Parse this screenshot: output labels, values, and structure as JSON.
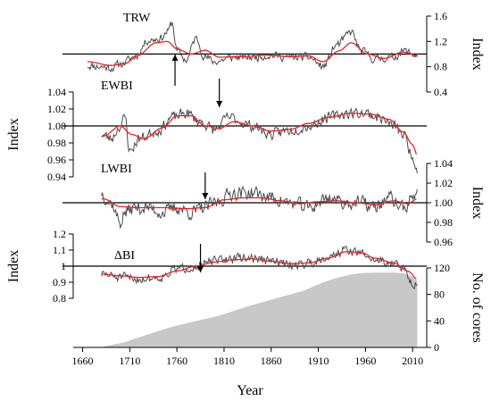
{
  "chart_data": {
    "type": "line",
    "x_axis": {
      "label": "Year",
      "range": [
        1650,
        2025
      ],
      "ticks": [
        1660,
        1710,
        1760,
        1810,
        1860,
        1910,
        1960,
        2010
      ],
      "tick_labels": [
        "1660",
        "1710",
        "1760",
        "1810",
        "1860",
        "1910",
        "1960",
        "2010"
      ]
    },
    "panels": [
      {
        "label": "TRW",
        "y_axis": {
          "side": "right",
          "label": "Index",
          "range": [
            0.4,
            1.6
          ],
          "ticks": [
            0.4,
            0.8,
            1.2,
            1.6
          ],
          "tick_labels": [
            "0.4",
            "0.8",
            "1.2",
            "1.6"
          ]
        },
        "reference_line": 1.0,
        "arrow_year": 1758,
        "x_start": 1665,
        "x_end": 2015,
        "raw_anchors": [
          [
            1665,
            0.82
          ],
          [
            1680,
            0.8
          ],
          [
            1690,
            0.78
          ],
          [
            1700,
            0.84
          ],
          [
            1715,
            0.95
          ],
          [
            1730,
            1.22
          ],
          [
            1743,
            1.25
          ],
          [
            1750,
            1.35
          ],
          [
            1755,
            1.5
          ],
          [
            1760,
            1.05
          ],
          [
            1770,
            0.9
          ],
          [
            1780,
            1.25
          ],
          [
            1790,
            0.95
          ],
          [
            1800,
            0.88
          ],
          [
            1820,
            0.95
          ],
          [
            1840,
            0.95
          ],
          [
            1860,
            0.98
          ],
          [
            1880,
            0.95
          ],
          [
            1900,
            0.95
          ],
          [
            1915,
            0.8
          ],
          [
            1930,
            1.15
          ],
          [
            1945,
            1.35
          ],
          [
            1955,
            1.05
          ],
          [
            1970,
            0.92
          ],
          [
            1990,
            0.95
          ],
          [
            2000,
            1.05
          ],
          [
            2015,
            0.98
          ]
        ],
        "smooth_anchors": [
          [
            1665,
            0.88
          ],
          [
            1690,
            0.82
          ],
          [
            1705,
            0.85
          ],
          [
            1720,
            1.0
          ],
          [
            1738,
            1.18
          ],
          [
            1750,
            1.2
          ],
          [
            1760,
            1.08
          ],
          [
            1775,
            1.0
          ],
          [
            1790,
            1.06
          ],
          [
            1805,
            0.95
          ],
          [
            1830,
            0.96
          ],
          [
            1855,
            0.98
          ],
          [
            1880,
            0.96
          ],
          [
            1900,
            0.97
          ],
          [
            1915,
            0.88
          ],
          [
            1932,
            1.05
          ],
          [
            1945,
            1.18
          ],
          [
            1962,
            1.0
          ],
          [
            1980,
            0.93
          ],
          [
            2000,
            1.03
          ],
          [
            2015,
            0.98
          ]
        ],
        "noise_amplitude": 0.09,
        "seed": 11
      },
      {
        "label": "EWBI",
        "y_axis": {
          "side": "left",
          "label": "Index",
          "range": [
            0.94,
            1.04
          ],
          "ticks": [
            0.94,
            0.96,
            0.98,
            1.0,
            1.02,
            1.04
          ],
          "tick_labels": [
            "0.94",
            "0.96",
            "0.98",
            "1.00",
            "1.02",
            "1.04"
          ]
        },
        "reference_line": 1.0,
        "arrow_year": 1805,
        "x_start": 1680,
        "x_end": 2015,
        "raw_anchors": [
          [
            1680,
            0.99
          ],
          [
            1690,
            0.985
          ],
          [
            1700,
            1.0
          ],
          [
            1705,
            1.01
          ],
          [
            1710,
            0.97
          ],
          [
            1720,
            0.985
          ],
          [
            1740,
            0.995
          ],
          [
            1755,
            1.01
          ],
          [
            1770,
            1.015
          ],
          [
            1785,
            1.005
          ],
          [
            1800,
            0.995
          ],
          [
            1815,
            1.01
          ],
          [
            1840,
            1.0
          ],
          [
            1860,
            0.99
          ],
          [
            1880,
            0.995
          ],
          [
            1900,
            1.0
          ],
          [
            1920,
            1.01
          ],
          [
            1940,
            1.015
          ],
          [
            1960,
            1.015
          ],
          [
            1975,
            1.01
          ],
          [
            1990,
            1.0
          ],
          [
            2000,
            0.99
          ],
          [
            2010,
            0.965
          ],
          [
            2015,
            0.95
          ]
        ],
        "smooth_anchors": [
          [
            1682,
            0.988
          ],
          [
            1700,
            1.0
          ],
          [
            1712,
            0.99
          ],
          [
            1725,
            0.985
          ],
          [
            1745,
            0.998
          ],
          [
            1760,
            1.012
          ],
          [
            1775,
            1.012
          ],
          [
            1790,
            1.0
          ],
          [
            1805,
            0.997
          ],
          [
            1820,
            1.005
          ],
          [
            1840,
            1.0
          ],
          [
            1860,
            0.994
          ],
          [
            1880,
            0.996
          ],
          [
            1900,
            1.003
          ],
          [
            1920,
            1.01
          ],
          [
            1945,
            1.015
          ],
          [
            1965,
            1.014
          ],
          [
            1985,
            1.008
          ],
          [
            2000,
            0.993
          ],
          [
            2010,
            0.978
          ],
          [
            2015,
            0.965
          ]
        ],
        "noise_amplitude": 0.009,
        "seed": 23
      },
      {
        "label": "LWBI",
        "y_axis": {
          "side": "right",
          "label": "Index",
          "range": [
            0.96,
            1.04
          ],
          "ticks": [
            0.96,
            0.98,
            1.0,
            1.02,
            1.04
          ],
          "tick_labels": [
            "0.96",
            "0.98",
            "1.00",
            "1.02",
            "1.04"
          ]
        },
        "reference_line": 1.0,
        "arrow_year": 1790,
        "x_start": 1680,
        "x_end": 2015,
        "raw_anchors": [
          [
            1680,
            1.01
          ],
          [
            1690,
            1.0
          ],
          [
            1700,
            0.98
          ],
          [
            1705,
            0.99
          ],
          [
            1715,
            0.995
          ],
          [
            1730,
            0.995
          ],
          [
            1745,
            0.99
          ],
          [
            1760,
            0.995
          ],
          [
            1775,
            0.99
          ],
          [
            1790,
            0.995
          ],
          [
            1800,
            1.0
          ],
          [
            1820,
            1.01
          ],
          [
            1840,
            1.01
          ],
          [
            1860,
            1.005
          ],
          [
            1880,
            1.0
          ],
          [
            1900,
            0.995
          ],
          [
            1920,
            1.005
          ],
          [
            1940,
            1.0
          ],
          [
            1955,
            1.0
          ],
          [
            1970,
            0.995
          ],
          [
            1985,
            1.005
          ],
          [
            2000,
            0.995
          ],
          [
            2015,
            1.01
          ]
        ],
        "smooth_anchors": [
          [
            1682,
            1.004
          ],
          [
            1700,
            0.996
          ],
          [
            1720,
            0.995
          ],
          [
            1745,
            0.995
          ],
          [
            1770,
            0.994
          ],
          [
            1790,
            0.995
          ],
          [
            1810,
            1.003
          ],
          [
            1830,
            1.005
          ],
          [
            1850,
            1.005
          ],
          [
            1870,
            1.002
          ],
          [
            1890,
            0.999
          ],
          [
            1910,
            1.001
          ],
          [
            1930,
            1.002
          ],
          [
            1950,
            1.0
          ],
          [
            1970,
            0.998
          ],
          [
            1990,
            1.002
          ],
          [
            2005,
            0.999
          ],
          [
            2015,
            1.004
          ]
        ],
        "noise_amplitude": 0.01,
        "seed": 37
      },
      {
        "label": "ΔBI",
        "y_axis": {
          "side": "left",
          "label": "Index",
          "range": [
            0.7,
            1.2
          ],
          "ticks": [
            0.8,
            0.9,
            1.0,
            1.1,
            1.2
          ],
          "tick_labels": [
            "0.8",
            "0.9",
            "1",
            "1.1",
            "1.2"
          ]
        },
        "reference_line": 1.0,
        "arrow_year": 1785,
        "x_start": 1680,
        "x_end": 2015,
        "raw_anchors": [
          [
            1680,
            0.95
          ],
          [
            1700,
            0.93
          ],
          [
            1720,
            0.92
          ],
          [
            1740,
            0.93
          ],
          [
            1760,
            0.98
          ],
          [
            1780,
            1.0
          ],
          [
            1800,
            1.03
          ],
          [
            1820,
            1.05
          ],
          [
            1840,
            1.05
          ],
          [
            1860,
            1.03
          ],
          [
            1880,
            1.01
          ],
          [
            1900,
            1.02
          ],
          [
            1920,
            1.06
          ],
          [
            1940,
            1.1
          ],
          [
            1955,
            1.08
          ],
          [
            1970,
            1.04
          ],
          [
            1990,
            1.02
          ],
          [
            2000,
            0.98
          ],
          [
            2010,
            0.9
          ],
          [
            2015,
            0.88
          ]
        ],
        "smooth_anchors": [
          [
            1682,
            0.95
          ],
          [
            1700,
            0.94
          ],
          [
            1720,
            0.93
          ],
          [
            1740,
            0.935
          ],
          [
            1760,
            0.97
          ],
          [
            1780,
            1.0
          ],
          [
            1800,
            1.025
          ],
          [
            1820,
            1.04
          ],
          [
            1840,
            1.045
          ],
          [
            1860,
            1.03
          ],
          [
            1880,
            1.015
          ],
          [
            1900,
            1.02
          ],
          [
            1920,
            1.05
          ],
          [
            1940,
            1.09
          ],
          [
            1955,
            1.085
          ],
          [
            1970,
            1.05
          ],
          [
            1990,
            1.02
          ],
          [
            2005,
            0.97
          ],
          [
            2015,
            0.92
          ]
        ],
        "noise_amplitude": 0.04,
        "seed": 51
      }
    ],
    "cores": {
      "label": "No. of cores",
      "y_axis": {
        "side": "right",
        "range": [
          0,
          120
        ],
        "ticks": [
          0,
          40,
          80,
          120
        ],
        "tick_labels": [
          "0",
          "40",
          "80",
          "120"
        ]
      },
      "points": [
        [
          1680,
          0
        ],
        [
          1685,
          2
        ],
        [
          1695,
          5
        ],
        [
          1705,
          8
        ],
        [
          1715,
          13
        ],
        [
          1730,
          20
        ],
        [
          1745,
          27
        ],
        [
          1760,
          33
        ],
        [
          1775,
          38
        ],
        [
          1790,
          43
        ],
        [
          1805,
          48
        ],
        [
          1820,
          55
        ],
        [
          1835,
          62
        ],
        [
          1850,
          68
        ],
        [
          1865,
          74
        ],
        [
          1880,
          80
        ],
        [
          1895,
          86
        ],
        [
          1905,
          92
        ],
        [
          1915,
          98
        ],
        [
          1925,
          103
        ],
        [
          1935,
          107
        ],
        [
          1945,
          110
        ],
        [
          1955,
          112
        ],
        [
          1970,
          113
        ],
        [
          1990,
          113
        ],
        [
          2000,
          112
        ],
        [
          2008,
          108
        ],
        [
          2012,
          105
        ],
        [
          2015,
          100
        ],
        [
          2015,
          0
        ]
      ]
    },
    "series_colors": {
      "raw": "#4a4a4a",
      "smooth": "#e8222a",
      "cores_fill": "#c8c8c8",
      "reference": "#000000"
    }
  }
}
